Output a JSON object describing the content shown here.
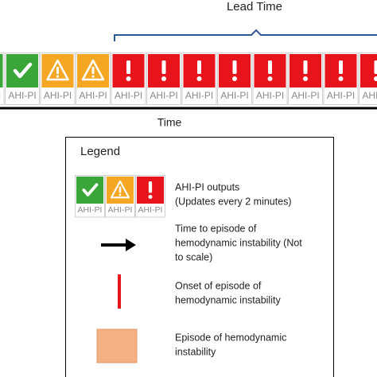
{
  "header": {
    "title": "Lead Time"
  },
  "timeline": {
    "axis_label": "Time",
    "tiles": [
      {
        "label": "AHI-PI",
        "icon": "check",
        "color": "#3aa63a"
      },
      {
        "label": "AHI-PI",
        "icon": "check",
        "color": "#3aa63a"
      },
      {
        "label": "AHI-PI",
        "icon": "warning",
        "color": "#f5a623"
      },
      {
        "label": "AHI-PI",
        "icon": "warning",
        "color": "#f5a623"
      },
      {
        "label": "AHI-PI",
        "icon": "alert",
        "color": "#e8141b"
      },
      {
        "label": "AHI-PI",
        "icon": "alert",
        "color": "#e8141b"
      },
      {
        "label": "AHI-PI",
        "icon": "alert",
        "color": "#e8141b"
      },
      {
        "label": "AHI-PI",
        "icon": "alert",
        "color": "#e8141b"
      },
      {
        "label": "AHI-PI",
        "icon": "alert",
        "color": "#e8141b"
      },
      {
        "label": "AHI-PI",
        "icon": "alert",
        "color": "#e8141b"
      },
      {
        "label": "AHI-PI",
        "icon": "alert",
        "color": "#e8141b"
      },
      {
        "label": "AHI-PI",
        "icon": "alert",
        "color": "#e8141b"
      }
    ]
  },
  "legend": {
    "title": "Legend",
    "tiles": [
      {
        "label": "AHI-PI",
        "icon": "check",
        "color": "#3aa63a"
      },
      {
        "label": "AHI-PI",
        "icon": "warning",
        "color": "#f5a623"
      },
      {
        "label": "AHI-PI",
        "icon": "alert",
        "color": "#e8141b"
      }
    ],
    "items": [
      {
        "lines": [
          "AHI-PI outputs",
          "(Updates every 2 minutes)"
        ]
      },
      {
        "lines": [
          "Time to episode of",
          "hemodynamic instability (Not",
          "to scale)"
        ]
      },
      {
        "lines": [
          "Onset of episode of",
          "hemodynamic instability"
        ]
      },
      {
        "lines": [
          "Episode of hemodynamic",
          "instability"
        ]
      }
    ]
  }
}
